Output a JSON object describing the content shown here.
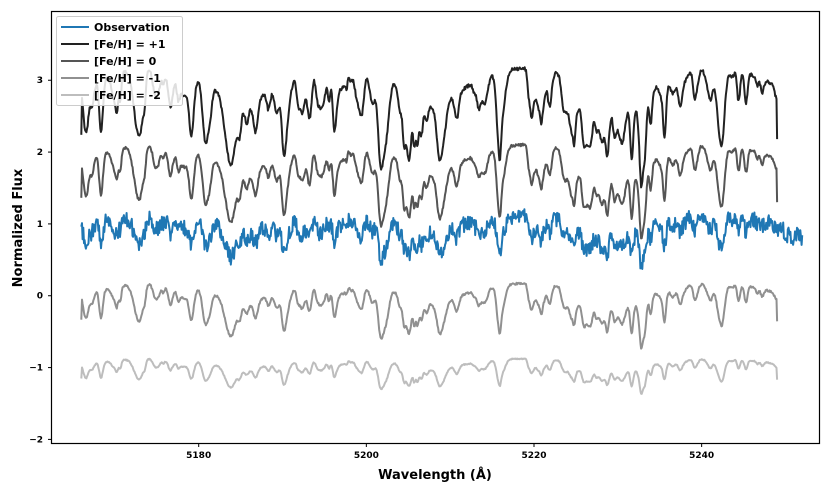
{
  "chart_data": {
    "type": "line",
    "xlabel": "Wavelength (Å)",
    "ylabel": "Normalized Flux",
    "xlim": [
      5162.5,
      5254.0
    ],
    "ylim": [
      -2.05,
      3.95
    ],
    "x_ticks": [
      5180,
      5200,
      5220,
      5240
    ],
    "y_ticks": [
      -2,
      -1,
      0,
      1,
      2,
      3
    ],
    "x_tick_labels": [
      "5180",
      "5200",
      "5220",
      "5240"
    ],
    "y_tick_labels": [
      "−2",
      "−1",
      "0",
      "1",
      "2",
      "3"
    ],
    "grid": false,
    "legend_position": "top-left",
    "series": [
      {
        "name": "Observation",
        "color": "#1f77b4",
        "offset": 0.85,
        "x_start": 5166.0,
        "x_end": 5252.0,
        "style": "observation"
      },
      {
        "name": "[Fe/H] = +1",
        "color": "#222222",
        "offset": 2.85,
        "x_start": 5166.0,
        "x_end": 5249.0,
        "style": "model",
        "depth": 1.0
      },
      {
        "name": "[Fe/H] = 0",
        "color": "#555555",
        "offset": 1.85,
        "x_start": 5166.0,
        "x_end": 5249.0,
        "style": "model",
        "depth": 0.8
      },
      {
        "name": "[Fe/H] = -1",
        "color": "#909090",
        "offset": 0.0,
        "x_start": 5166.0,
        "x_end": 5249.0,
        "style": "model",
        "depth": 0.55
      },
      {
        "name": "[Fe/H] = -2",
        "color": "#bdbdbd",
        "offset": -0.97,
        "x_start": 5166.0,
        "x_end": 5249.0,
        "style": "model",
        "depth": 0.3
      }
    ]
  }
}
